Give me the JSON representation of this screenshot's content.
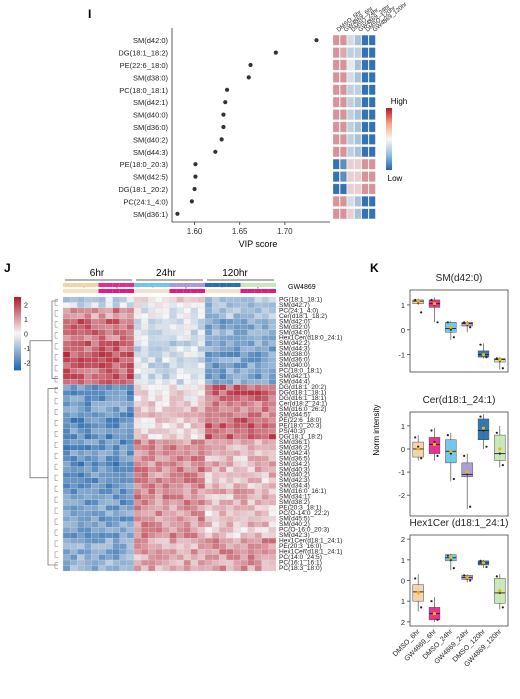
{
  "figure": {
    "panel_I": "I",
    "panel_J": "J",
    "panel_K": "K"
  },
  "colors": {
    "high": "#b2182b",
    "mid": "#f7f7f7",
    "low": "#2166ac",
    "dmso_6": "#f6d2a8",
    "gw_6": "#e8298c",
    "dmso_24": "#6ec6ea",
    "gw_24": "#a99ad8",
    "dmso_120": "#2a6fb3",
    "gw_120": "#c8e8b8",
    "gw_treat": "#e21b83",
    "ctrl_treat": "#f7e0c8"
  },
  "chart_data": [
    {
      "type": "scatter",
      "panel": "I",
      "xlabel": "VIP score",
      "x_ticks": [
        "1.60",
        "1.65",
        "1.70"
      ],
      "xlim": [
        1.575,
        1.75
      ],
      "features": [
        {
          "name": "SM(d42:0)",
          "vip": 1.735
        },
        {
          "name": "DG(18:1_18:2)",
          "vip": 1.69
        },
        {
          "name": "PE(22:6_18:0)",
          "vip": 1.662
        },
        {
          "name": "SM(d38:0)",
          "vip": 1.66
        },
        {
          "name": "PC(18:0_18:1)",
          "vip": 1.636
        },
        {
          "name": "SM(d42:1)",
          "vip": 1.634
        },
        {
          "name": "SM(d40:0)",
          "vip": 1.632
        },
        {
          "name": "SM(d36:0)",
          "vip": 1.632
        },
        {
          "name": "SM(d40:2)",
          "vip": 1.63
        },
        {
          "name": "SM(d44:3)",
          "vip": 1.623
        },
        {
          "name": "PE(18:0_20:3)",
          "vip": 1.601
        },
        {
          "name": "SM(d42:5)",
          "vip": 1.601
        },
        {
          "name": "DG(18:1_20:2)",
          "vip": 1.6
        },
        {
          "name": "PC(24:1_4:0)",
          "vip": 1.597
        },
        {
          "name": "SM(d36:1)",
          "vip": 1.581
        }
      ],
      "mini_heatmap_columns": [
        "DMSO_6hr",
        "GW4869_6hr",
        "DMSO_24hr",
        "GW4869_24hr",
        "DMSO_120hr",
        "GW4869_120hr"
      ],
      "mini_heatmap_values": [
        [
          0.5,
          0.5,
          -0.2,
          -0.4,
          -1,
          -1
        ],
        [
          0.5,
          0.4,
          -0.3,
          -0.3,
          -1,
          -1
        ],
        [
          0.5,
          0.5,
          -0.1,
          -0.4,
          -1,
          -1
        ],
        [
          0.5,
          0.5,
          -0.2,
          -0.4,
          -1,
          -1
        ],
        [
          0.5,
          0.5,
          -0.3,
          -0.3,
          -1,
          -1
        ],
        [
          0.5,
          0.5,
          -0.3,
          -0.4,
          -1,
          -1
        ],
        [
          0.5,
          0.5,
          -0.3,
          -0.4,
          -1,
          -1
        ],
        [
          0.5,
          0.5,
          -0.3,
          -0.4,
          -1,
          -1
        ],
        [
          0.5,
          0.5,
          -0.3,
          -0.4,
          -1,
          -1
        ],
        [
          0.5,
          0.5,
          -0.3,
          -0.4,
          -1,
          -1
        ],
        [
          -1,
          -0.8,
          0.2,
          0.2,
          0.5,
          0.5
        ],
        [
          -1,
          -0.8,
          0.2,
          0.2,
          0.5,
          0.5
        ],
        [
          -1,
          -1,
          0.2,
          0.2,
          0.5,
          0.5
        ],
        [
          0.5,
          0.5,
          -0.2,
          -0.4,
          -1,
          -1
        ],
        [
          0.5,
          0.5,
          0.2,
          -0.4,
          -1,
          -1
        ]
      ],
      "legend": {
        "high": "High",
        "low": "Low"
      }
    },
    {
      "type": "heatmap",
      "panel": "J",
      "group_labels": [
        "6hr",
        "24hr",
        "120hr"
      ],
      "treatment_label": "GW4869",
      "minus": "-",
      "plus": "+",
      "scale_ticks": [
        "2",
        "1",
        "0",
        "-1",
        "-2"
      ],
      "scale_range": [
        -2.5,
        2.5
      ],
      "columns_per_group": 10,
      "rows": [
        {
          "name": "PG(18:1_18:1)",
          "c": [
            -0.5,
            0.2,
            -0.8
          ]
        },
        {
          "name": "SM(d42:7)",
          "c": [
            -0.4,
            0.1,
            -0.9
          ]
        },
        {
          "name": "PC(24:1_4:0)",
          "c": [
            1.2,
            -0.3,
            -0.9
          ]
        },
        {
          "name": "Cer(d18:1_18:2)",
          "c": [
            0.9,
            -0.2,
            -0.8
          ]
        },
        {
          "name": "SM(d42:0)",
          "c": [
            1.5,
            -0.4,
            -1.2
          ]
        },
        {
          "name": "SM(d32:0)",
          "c": [
            1.4,
            -0.3,
            -1.1
          ]
        },
        {
          "name": "SM(d34:0)",
          "c": [
            1.3,
            -0.4,
            -1.0
          ]
        },
        {
          "name": "Hex1Cer(d18:0_24:1)",
          "c": [
            1.2,
            -0.1,
            -1.0
          ]
        },
        {
          "name": "SM(d42:2)",
          "c": [
            1.5,
            -0.5,
            -1.1
          ]
        },
        {
          "name": "SM(d44:3)",
          "c": [
            1.4,
            -0.4,
            -1.2
          ]
        },
        {
          "name": "SM(d38:0)",
          "c": [
            1.6,
            -0.3,
            -1.3
          ]
        },
        {
          "name": "SM(d36:0)",
          "c": [
            1.5,
            -0.4,
            -1.2
          ]
        },
        {
          "name": "SM(d40:0)",
          "c": [
            1.5,
            -0.4,
            -1.3
          ]
        },
        {
          "name": "PC(18:0_18:1)",
          "c": [
            1.4,
            -0.3,
            -1.2
          ]
        },
        {
          "name": "SM(d42:1)",
          "c": [
            1.5,
            -0.4,
            -1.3
          ]
        },
        {
          "name": "SM(d44:4)",
          "c": [
            1.4,
            -0.5,
            -1.1
          ]
        },
        {
          "name": "DG(d18:1_20:2)",
          "c": [
            -1.5,
            0.2,
            1.4
          ]
        },
        {
          "name": "DG(d18:1_18:1)",
          "c": [
            -1.6,
            0.3,
            1.5
          ]
        },
        {
          "name": "DG(d16:1_18:1)",
          "c": [
            -1.4,
            0.2,
            1.3
          ]
        },
        {
          "name": "Cer(d18:2_24:1)",
          "c": [
            -1.4,
            0.4,
            1.2
          ]
        },
        {
          "name": "SM(d16:0_26:2)",
          "c": [
            -1.3,
            0.5,
            1.1
          ]
        },
        {
          "name": "SM(d44:5)",
          "c": [
            -1.5,
            0.5,
            1.2
          ]
        },
        {
          "name": "PE(22:6_18:0)",
          "c": [
            -1.6,
            0.4,
            1.4
          ]
        },
        {
          "name": "PE(18:0_20:3)",
          "c": [
            -1.5,
            0.3,
            1.4
          ]
        },
        {
          "name": "PS(40:3)",
          "c": [
            -1.4,
            0.4,
            1.2
          ]
        },
        {
          "name": "DG(18:1_18:2)",
          "c": [
            -1.6,
            0.3,
            1.5
          ]
        },
        {
          "name": "SM(d36:1)",
          "c": [
            -1.5,
            1.0,
            0.7
          ]
        },
        {
          "name": "SM(d36:2)",
          "c": [
            -1.5,
            1.1,
            0.6
          ]
        },
        {
          "name": "SM(d42:4)",
          "c": [
            -1.4,
            1.0,
            0.6
          ]
        },
        {
          "name": "SM(d36:5)",
          "c": [
            -1.5,
            1.1,
            0.5
          ]
        },
        {
          "name": "SM(d34:2)",
          "c": [
            -1.6,
            1.0,
            0.7
          ]
        },
        {
          "name": "SM(d40:3)",
          "c": [
            -1.5,
            1.1,
            0.6
          ]
        },
        {
          "name": "SM(d40:2)",
          "c": [
            -1.5,
            1.0,
            0.6
          ]
        },
        {
          "name": "SM(d42:3)",
          "c": [
            -1.4,
            1.1,
            0.5
          ]
        },
        {
          "name": "SM(d34:4)",
          "c": [
            -1.5,
            1.0,
            0.6
          ]
        },
        {
          "name": "SM(d16:0_16:1)",
          "c": [
            -1.4,
            1.0,
            0.7
          ]
        },
        {
          "name": "SM(d34:1)",
          "c": [
            -1.5,
            1.1,
            0.6
          ]
        },
        {
          "name": "SM(d38:2)",
          "c": [
            -1.4,
            1.0,
            0.6
          ]
        },
        {
          "name": "PE(20:3_18:1)",
          "c": [
            -1.3,
            0.9,
            0.5
          ]
        },
        {
          "name": "PC(O-14:0_22:2)",
          "c": [
            -1.2,
            0.9,
            0.4
          ]
        },
        {
          "name": "SM(d45:5)",
          "c": [
            -1.3,
            1.0,
            0.5
          ]
        },
        {
          "name": "SM(d40:2)",
          "c": [
            -1.3,
            1.0,
            0.5
          ]
        },
        {
          "name": "PC(O-16:0_20:3)",
          "c": [
            -1.2,
            0.9,
            0.4
          ]
        },
        {
          "name": "SM(d42:3)",
          "c": [
            -1.3,
            1.0,
            0.5
          ]
        },
        {
          "name": "Hex1Cer(d18:1_24:1)",
          "c": [
            -1.2,
            0.8,
            1.0
          ]
        },
        {
          "name": "PE(20:3_16:0)",
          "c": [
            -1.1,
            0.7,
            0.9
          ]
        },
        {
          "name": "Hex1Cer(d18:1_24:1)",
          "c": [
            -1.2,
            0.8,
            1.0
          ]
        },
        {
          "name": "PC(14:0_24:5)",
          "c": [
            -1.1,
            0.7,
            1.0
          ]
        },
        {
          "name": "PC(16:1_16:1)",
          "c": [
            -1.0,
            0.8,
            0.9
          ]
        },
        {
          "name": "PC(18:3_18:0)",
          "c": [
            -1.1,
            0.8,
            0.9
          ]
        }
      ]
    },
    {
      "type": "box",
      "panel": "K",
      "ylabel": "Norm intensity",
      "groups": [
        "DMSO_6hr",
        "GW4869_6hr",
        "DMSO_24hr",
        "GW4869_24hr",
        "DMSO_120hr",
        "GW4869_120hr"
      ],
      "plots": [
        {
          "title": "SM(d42:0)",
          "ylim": [
            -1.7,
            1.6
          ],
          "yticks": [
            1,
            0,
            -1
          ],
          "boxes": [
            {
              "q1": 1.05,
              "median": 1.15,
              "q3": 1.2,
              "min": 1.0,
              "max": 1.25,
              "mean": 1.15,
              "points": [
                1.2,
                1.1,
                0.7
              ]
            },
            {
              "q1": 0.9,
              "median": 1.05,
              "q3": 1.2,
              "min": 0.3,
              "max": 1.3,
              "mean": 1.05,
              "points": [
                1.2,
                1.0,
                0.3
              ]
            },
            {
              "q1": -0.1,
              "median": 0.05,
              "q3": 0.3,
              "min": -0.4,
              "max": 0.35,
              "mean": 0.1,
              "points": [
                0.3,
                0.0,
                -0.3
              ]
            },
            {
              "q1": 0.15,
              "median": 0.25,
              "q3": 0.3,
              "min": -0.1,
              "max": 0.35,
              "mean": 0.25,
              "points": [
                0.3,
                0.2,
                0.1
              ]
            },
            {
              "q1": -1.1,
              "median": -1.0,
              "q3": -0.85,
              "min": -1.15,
              "max": -0.55,
              "mean": -1.0,
              "points": [
                -0.6,
                -1.0,
                -1.1
              ]
            },
            {
              "q1": -1.3,
              "median": -1.2,
              "q3": -1.15,
              "min": -1.6,
              "max": -1.1,
              "mean": -1.2,
              "points": [
                -1.15,
                -1.25,
                -1.55
              ]
            }
          ]
        },
        {
          "title": "Cer(d18:1_24:1)",
          "ylim": [
            -2.9,
            1.6
          ],
          "yticks": [
            1,
            0,
            -1,
            -2
          ],
          "boxes": [
            {
              "q1": -0.35,
              "median": 0.0,
              "q3": 0.3,
              "min": -0.5,
              "max": 0.6,
              "mean": 0.0,
              "points": [
                0.5,
                0.1,
                -0.4
              ]
            },
            {
              "q1": -0.2,
              "median": 0.2,
              "q3": 0.5,
              "min": -0.5,
              "max": 0.9,
              "mean": 0.2,
              "points": [
                0.8,
                0.3,
                -0.3
              ]
            },
            {
              "q1": -0.6,
              "median": -0.1,
              "q3": 0.4,
              "min": -1.4,
              "max": 0.7,
              "mean": -0.1,
              "points": [
                0.6,
                -0.2,
                -1.3
              ]
            },
            {
              "q1": -1.2,
              "median": -1.1,
              "q3": -0.6,
              "min": -2.6,
              "max": -0.2,
              "mean": -1.0,
              "points": [
                -0.3,
                -1.1,
                -2.5
              ]
            },
            {
              "q1": 0.4,
              "median": 0.8,
              "q3": 1.3,
              "min": 0.0,
              "max": 1.5,
              "mean": 0.9,
              "points": [
                1.4,
                0.8,
                0.1
              ]
            },
            {
              "q1": -0.5,
              "median": -0.2,
              "q3": 0.6,
              "min": -0.8,
              "max": 1.0,
              "mean": 0.0,
              "points": [
                0.7,
                -0.2,
                -0.7
              ]
            }
          ]
        },
        {
          "title": "Hex1Cer (d18:1_24:1)",
          "ylim": [
            -2.2,
            2.2
          ],
          "yticks": [
            2,
            1,
            0,
            -1,
            -2
          ],
          "ytick_labels": [
            "2",
            "1",
            "0",
            "1",
            "2"
          ],
          "boxes": [
            {
              "q1": -1.0,
              "median": -0.55,
              "q3": -0.2,
              "min": -1.5,
              "max": 0.3,
              "mean": -0.6,
              "points": [
                0.1,
                -0.6,
                -1.3
              ]
            },
            {
              "q1": -1.9,
              "median": -1.6,
              "q3": -1.3,
              "min": -2.0,
              "max": -0.8,
              "mean": -1.6,
              "points": [
                -1.0,
                -1.6,
                -1.9
              ]
            },
            {
              "q1": 0.95,
              "median": 1.1,
              "q3": 1.25,
              "min": 0.5,
              "max": 1.3,
              "mean": 1.1,
              "points": [
                1.2,
                1.0,
                0.6
              ]
            },
            {
              "q1": 0.05,
              "median": 0.15,
              "q3": 0.25,
              "min": -0.1,
              "max": 0.3,
              "mean": 0.15,
              "points": [
                0.25,
                0.1,
                0.0
              ]
            },
            {
              "q1": 0.75,
              "median": 0.85,
              "q3": 0.95,
              "min": 0.6,
              "max": 1.0,
              "mean": 0.85,
              "points": [
                0.95,
                0.8,
                0.65
              ]
            },
            {
              "q1": -1.1,
              "median": -0.6,
              "q3": 0.1,
              "min": -1.4,
              "max": 0.3,
              "mean": -0.5,
              "points": [
                0.2,
                -0.6,
                -1.3
              ]
            }
          ]
        }
      ]
    }
  ]
}
